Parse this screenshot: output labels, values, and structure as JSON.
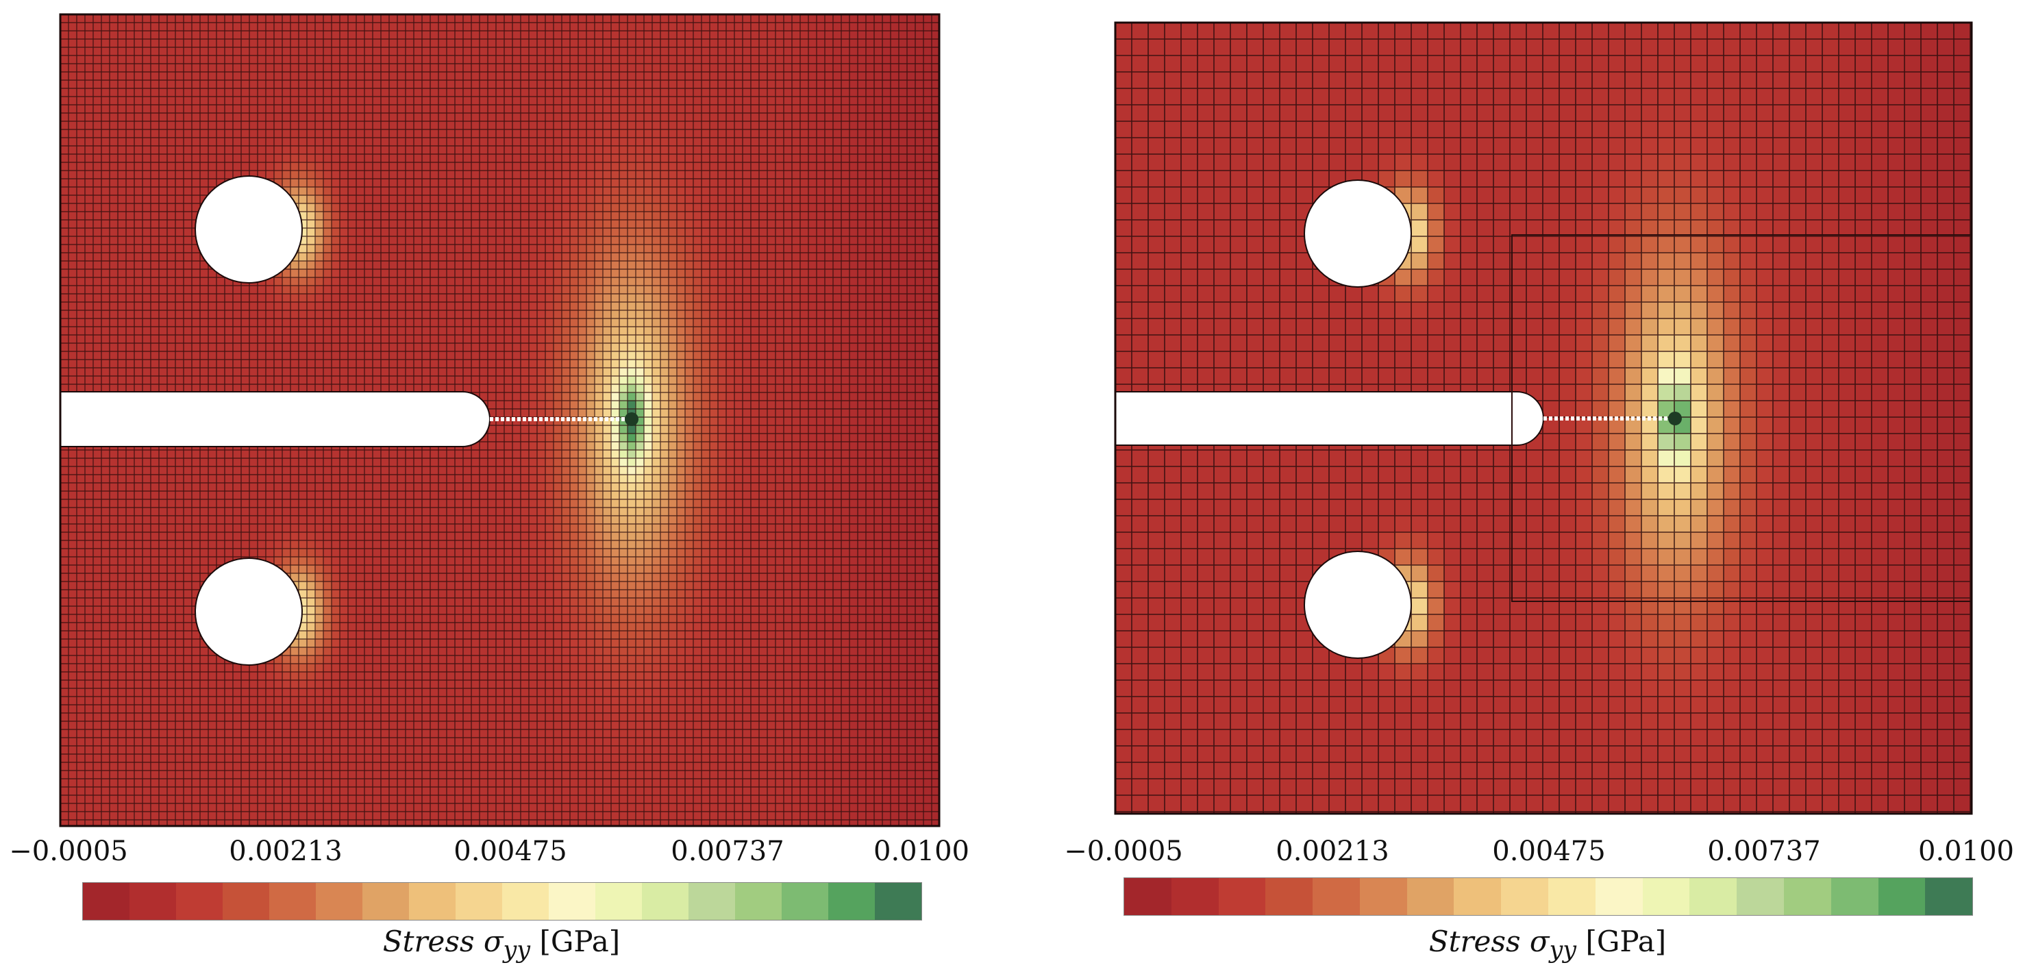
{
  "panels": [
    {
      "id": "left",
      "ticks": [
        "−0.0005",
        "0.00213",
        "0.00475",
        "0.00737",
        "0.0100"
      ],
      "colorbar_label": "Stress",
      "colorbar_symbol": "σ",
      "colorbar_sub": "yy",
      "colorbar_unit": "[GPa]"
    },
    {
      "id": "right",
      "ticks": [
        "−0.0005",
        "0.00213",
        "0.00475",
        "0.00737",
        "0.0100"
      ],
      "colorbar_label": "Stress",
      "colorbar_symbol": "σ",
      "colorbar_sub": "yy",
      "colorbar_unit": "[GPa]"
    }
  ],
  "colormap": [
    "#a3262b",
    "#b12e2e",
    "#bf3c33",
    "#c65238",
    "#d06a44",
    "#d98653",
    "#e0a365",
    "#eec07a",
    "#f5d590",
    "#f9e8a6",
    "#fbf6c6",
    "#eef5b4",
    "#d9eca4",
    "#bcd79a",
    "#a1cc80",
    "#7dbb72",
    "#55a35e",
    "#3e7b55"
  ],
  "colorbar_values": [
    -0.0005,
    0.00213,
    0.00475,
    0.00737,
    0.01
  ]
}
